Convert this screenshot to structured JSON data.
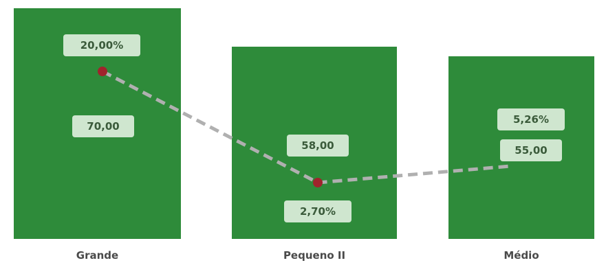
{
  "chart_data": {
    "type": "bar",
    "categories": [
      "Grande",
      "Pequeno II",
      "Médio"
    ],
    "series": [
      {
        "type": "bar",
        "values": [
          70.0,
          58.0,
          55.0
        ],
        "labels": [
          "70,00",
          "58,00",
          "55,00"
        ]
      },
      {
        "type": "line",
        "values": [
          20.0,
          2.7,
          5.26
        ],
        "labels": [
          "20,00%",
          "2,70%",
          "5,26%"
        ]
      }
    ],
    "colors": {
      "bar": "#2e8b3a",
      "line": "#b0b0b0",
      "marker": "#a0242c",
      "label_box": "#cfe6cf"
    },
    "grid": false,
    "legend": "none"
  }
}
